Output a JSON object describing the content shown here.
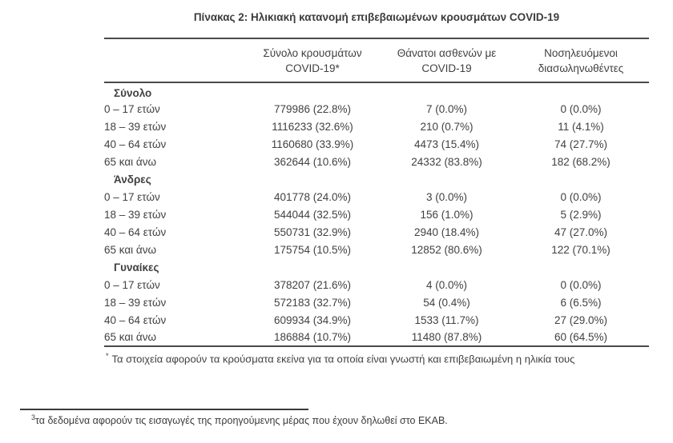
{
  "title": "Πίνακας 2: Ηλικιακή κατανομή επιβεβαιωμένων κρουσμάτων COVID-19",
  "table": {
    "columns": {
      "cases": "Σύνολο κρουσμάτων\nCOVID-19*",
      "deaths": "Θάνατοι ασθενών με\nCOVID-19",
      "intubated": "Νοσηλευόμενοι\nδιασωληνωθέντες"
    },
    "sections": [
      {
        "label": "Σύνολο",
        "rows": [
          {
            "age": "0 – 17 ετών",
            "cases": "779986 (22.8%)",
            "deaths": "7 (0.0%)",
            "intubated": "0 (0.0%)"
          },
          {
            "age": "18 – 39 ετών",
            "cases": "1116233 (32.6%)",
            "deaths": "210 (0.7%)",
            "intubated": "11 (4.1%)"
          },
          {
            "age": "40 – 64 ετών",
            "cases": "1160680 (33.9%)",
            "deaths": "4473 (15.4%)",
            "intubated": "74 (27.7%)"
          },
          {
            "age": "65 και άνω",
            "cases": "362644 (10.6%)",
            "deaths": "24332 (83.8%)",
            "intubated": "182 (68.2%)"
          }
        ]
      },
      {
        "label": "Άνδρες",
        "rows": [
          {
            "age": "0 – 17 ετών",
            "cases": "401778 (24.0%)",
            "deaths": "3 (0.0%)",
            "intubated": "0 (0.0%)"
          },
          {
            "age": "18 – 39 ετών",
            "cases": "544044 (32.5%)",
            "deaths": "156 (1.0%)",
            "intubated": "5 (2.9%)"
          },
          {
            "age": "40 – 64 ετών",
            "cases": "550731 (32.9%)",
            "deaths": "2940 (18.4%)",
            "intubated": "47 (27.0%)"
          },
          {
            "age": "65 και άνω",
            "cases": "175754 (10.5%)",
            "deaths": "12852 (80.6%)",
            "intubated": "122 (70.1%)"
          }
        ]
      },
      {
        "label": "Γυναίκες",
        "rows": [
          {
            "age": "0 – 17 ετών",
            "cases": "378207 (21.6%)",
            "deaths": "4 (0.0%)",
            "intubated": "0 (0.0%)"
          },
          {
            "age": "18 – 39 ετών",
            "cases": "572183 (32.7%)",
            "deaths": "54 (0.4%)",
            "intubated": "6 (6.5%)"
          },
          {
            "age": "40 – 64 ετών",
            "cases": "609934 (34.9%)",
            "deaths": "1533 (11.7%)",
            "intubated": "27 (29.0%)"
          },
          {
            "age": "65 και άνω",
            "cases": "186884 (10.7%)",
            "deaths": "11480 (87.8%)",
            "intubated": "60 (64.5%)"
          }
        ]
      }
    ],
    "footnote_marker": "*",
    "footnote_text": "Τα στοιχεία αφορούν τα κρούσματα εκείνα για τα οποία είναι γνωστή και επιβεβαιωμένη η ηλικία τους"
  },
  "page_footnote": {
    "marker": "3",
    "text": "τα δεδομένα αφορούν τις εισαγωγές της προηγούμενης μέρας που έχουν δηλωθεί στο ΕΚΑΒ."
  }
}
